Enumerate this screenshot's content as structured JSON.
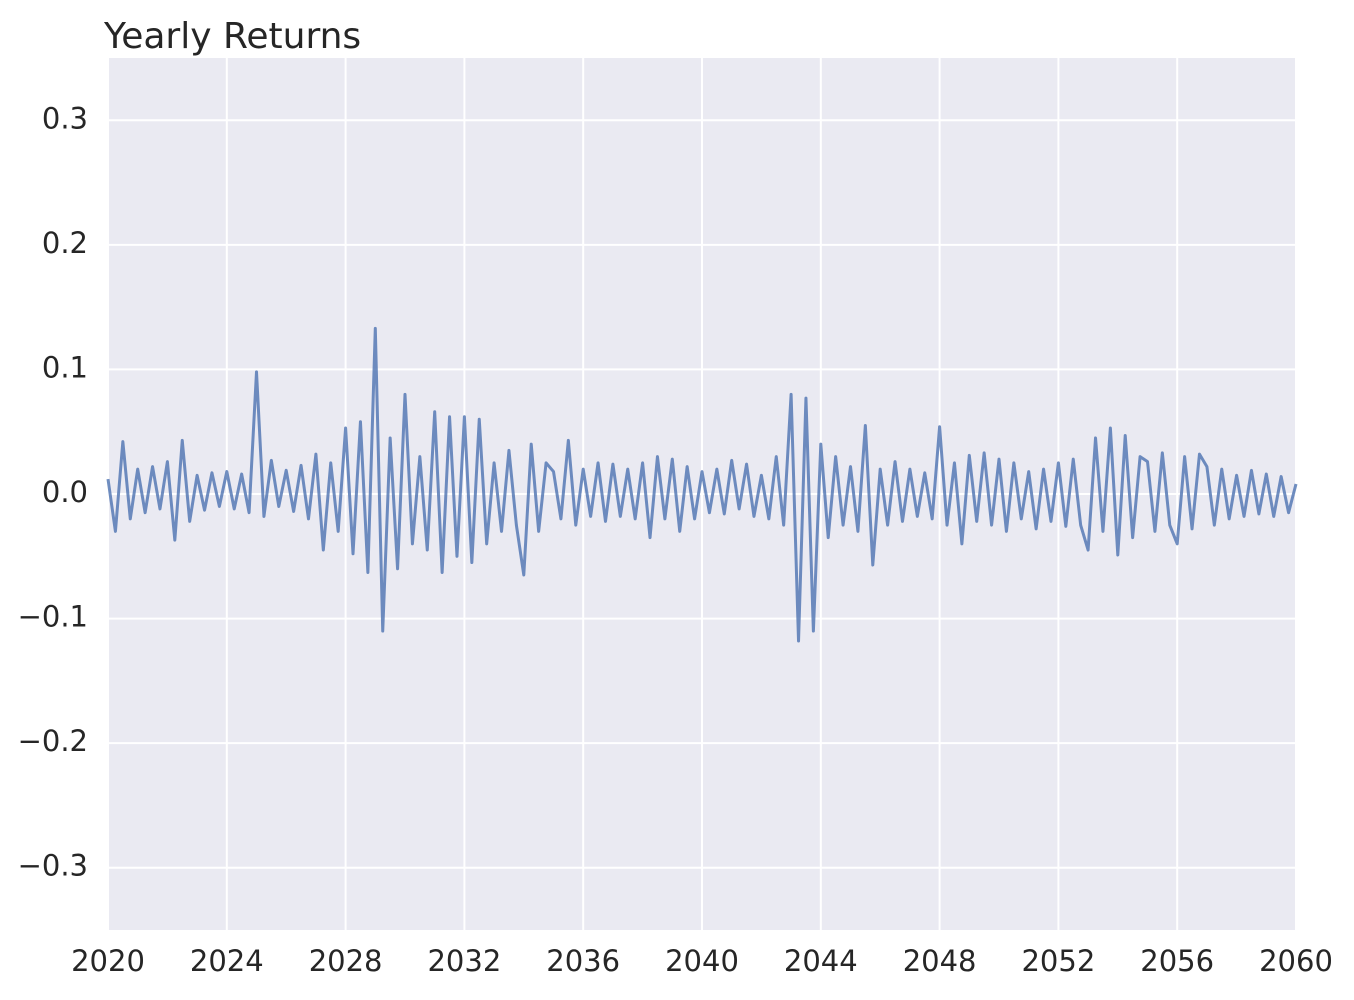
{
  "chart_data": {
    "type": "line",
    "title": "Yearly Returns",
    "x": [
      2020,
      2020.25,
      2020.5,
      2020.75,
      2021,
      2021.25,
      2021.5,
      2021.75,
      2022,
      2022.25,
      2022.5,
      2022.75,
      2023,
      2023.25,
      2023.5,
      2023.75,
      2024,
      2024.25,
      2024.5,
      2024.75,
      2025,
      2025.25,
      2025.5,
      2025.75,
      2026,
      2026.25,
      2026.5,
      2026.75,
      2027,
      2027.25,
      2027.5,
      2027.75,
      2028,
      2028.25,
      2028.5,
      2028.75,
      2029,
      2029.25,
      2029.5,
      2029.75,
      2030,
      2030.25,
      2030.5,
      2030.75,
      2031,
      2031.25,
      2031.5,
      2031.75,
      2032,
      2032.25,
      2032.5,
      2032.75,
      2033,
      2033.25,
      2033.5,
      2033.75,
      2034,
      2034.25,
      2034.5,
      2034.75,
      2035,
      2035.25,
      2035.5,
      2035.75,
      2036,
      2036.25,
      2036.5,
      2036.75,
      2037,
      2037.25,
      2037.5,
      2037.75,
      2038,
      2038.25,
      2038.5,
      2038.75,
      2039,
      2039.25,
      2039.5,
      2039.75,
      2040,
      2040.25,
      2040.5,
      2040.75,
      2041,
      2041.25,
      2041.5,
      2041.75,
      2042,
      2042.25,
      2042.5,
      2042.75,
      2043,
      2043.25,
      2043.5,
      2043.75,
      2044,
      2044.25,
      2044.5,
      2044.75,
      2045,
      2045.25,
      2045.5,
      2045.75,
      2046,
      2046.25,
      2046.5,
      2046.75,
      2047,
      2047.25,
      2047.5,
      2047.75,
      2048,
      2048.25,
      2048.5,
      2048.75,
      2049,
      2049.25,
      2049.5,
      2049.75,
      2050,
      2050.25,
      2050.5,
      2050.75,
      2051,
      2051.25,
      2051.5,
      2051.75,
      2052,
      2052.25,
      2052.5,
      2052.75,
      2053,
      2053.25,
      2053.5,
      2053.75,
      2054,
      2054.25,
      2054.5,
      2054.75,
      2055,
      2055.25,
      2055.5,
      2055.75,
      2056,
      2056.25,
      2056.5,
      2056.75,
      2057,
      2057.25,
      2057.5,
      2057.75,
      2058,
      2058.25,
      2058.5,
      2058.75,
      2059,
      2059.25,
      2059.5,
      2059.75,
      2060
    ],
    "series": [
      {
        "color": "#4c72b0",
        "values": [
          0.012,
          -0.03,
          0.042,
          -0.02,
          0.02,
          -0.015,
          0.022,
          -0.012,
          0.026,
          -0.037,
          0.043,
          -0.022,
          0.015,
          -0.013,
          0.017,
          -0.01,
          0.018,
          -0.012,
          0.016,
          -0.015,
          0.098,
          -0.018,
          0.027,
          -0.01,
          0.019,
          -0.014,
          0.023,
          -0.02,
          0.032,
          -0.045,
          0.025,
          -0.03,
          0.053,
          -0.048,
          0.058,
          -0.063,
          0.133,
          -0.11,
          0.045,
          -0.06,
          0.08,
          -0.04,
          0.03,
          -0.045,
          0.066,
          -0.063,
          0.062,
          -0.05,
          0.062,
          -0.055,
          0.06,
          -0.04,
          0.025,
          -0.03,
          0.035,
          -0.025,
          -0.065,
          0.04,
          -0.03,
          0.025,
          0.018,
          -0.02,
          0.043,
          -0.025,
          0.02,
          -0.018,
          0.025,
          -0.022,
          0.024,
          -0.018,
          0.02,
          -0.02,
          0.025,
          -0.035,
          0.03,
          -0.02,
          0.028,
          -0.03,
          0.022,
          -0.02,
          0.018,
          -0.015,
          0.02,
          -0.016,
          0.027,
          -0.012,
          0.024,
          -0.018,
          0.015,
          -0.02,
          0.03,
          -0.025,
          0.08,
          -0.118,
          0.077,
          -0.11,
          0.04,
          -0.035,
          0.03,
          -0.025,
          0.022,
          -0.03,
          0.055,
          -0.057,
          0.02,
          -0.025,
          0.026,
          -0.022,
          0.02,
          -0.018,
          0.017,
          -0.02,
          0.054,
          -0.025,
          0.025,
          -0.04,
          0.031,
          -0.022,
          0.033,
          -0.025,
          0.028,
          -0.03,
          0.025,
          -0.02,
          0.018,
          -0.028,
          0.02,
          -0.022,
          0.025,
          -0.026,
          0.028,
          -0.025,
          -0.045,
          0.045,
          -0.03,
          0.053,
          -0.049,
          0.047,
          -0.035,
          0.03,
          0.026,
          -0.03,
          0.033,
          -0.025,
          -0.04,
          0.03,
          -0.028,
          0.032,
          0.022,
          -0.025,
          0.02,
          -0.02,
          0.015,
          -0.018,
          0.019,
          -0.016,
          0.016,
          -0.018,
          0.014,
          -0.015,
          0.008
        ]
      }
    ],
    "xlim": [
      2020,
      2060
    ],
    "xticks": [
      2020,
      2024,
      2028,
      2032,
      2036,
      2040,
      2044,
      2048,
      2052,
      2056,
      2060
    ],
    "ylim": [
      -0.35,
      0.35
    ],
    "yticks": [
      {
        "value": -0.3,
        "label": "−0.3"
      },
      {
        "value": -0.2,
        "label": "−0.2"
      },
      {
        "value": -0.1,
        "label": "−0.1"
      },
      {
        "value": 0,
        "label": "0.0"
      },
      0.1,
      0.2,
      0.3
    ],
    "grid": true
  }
}
